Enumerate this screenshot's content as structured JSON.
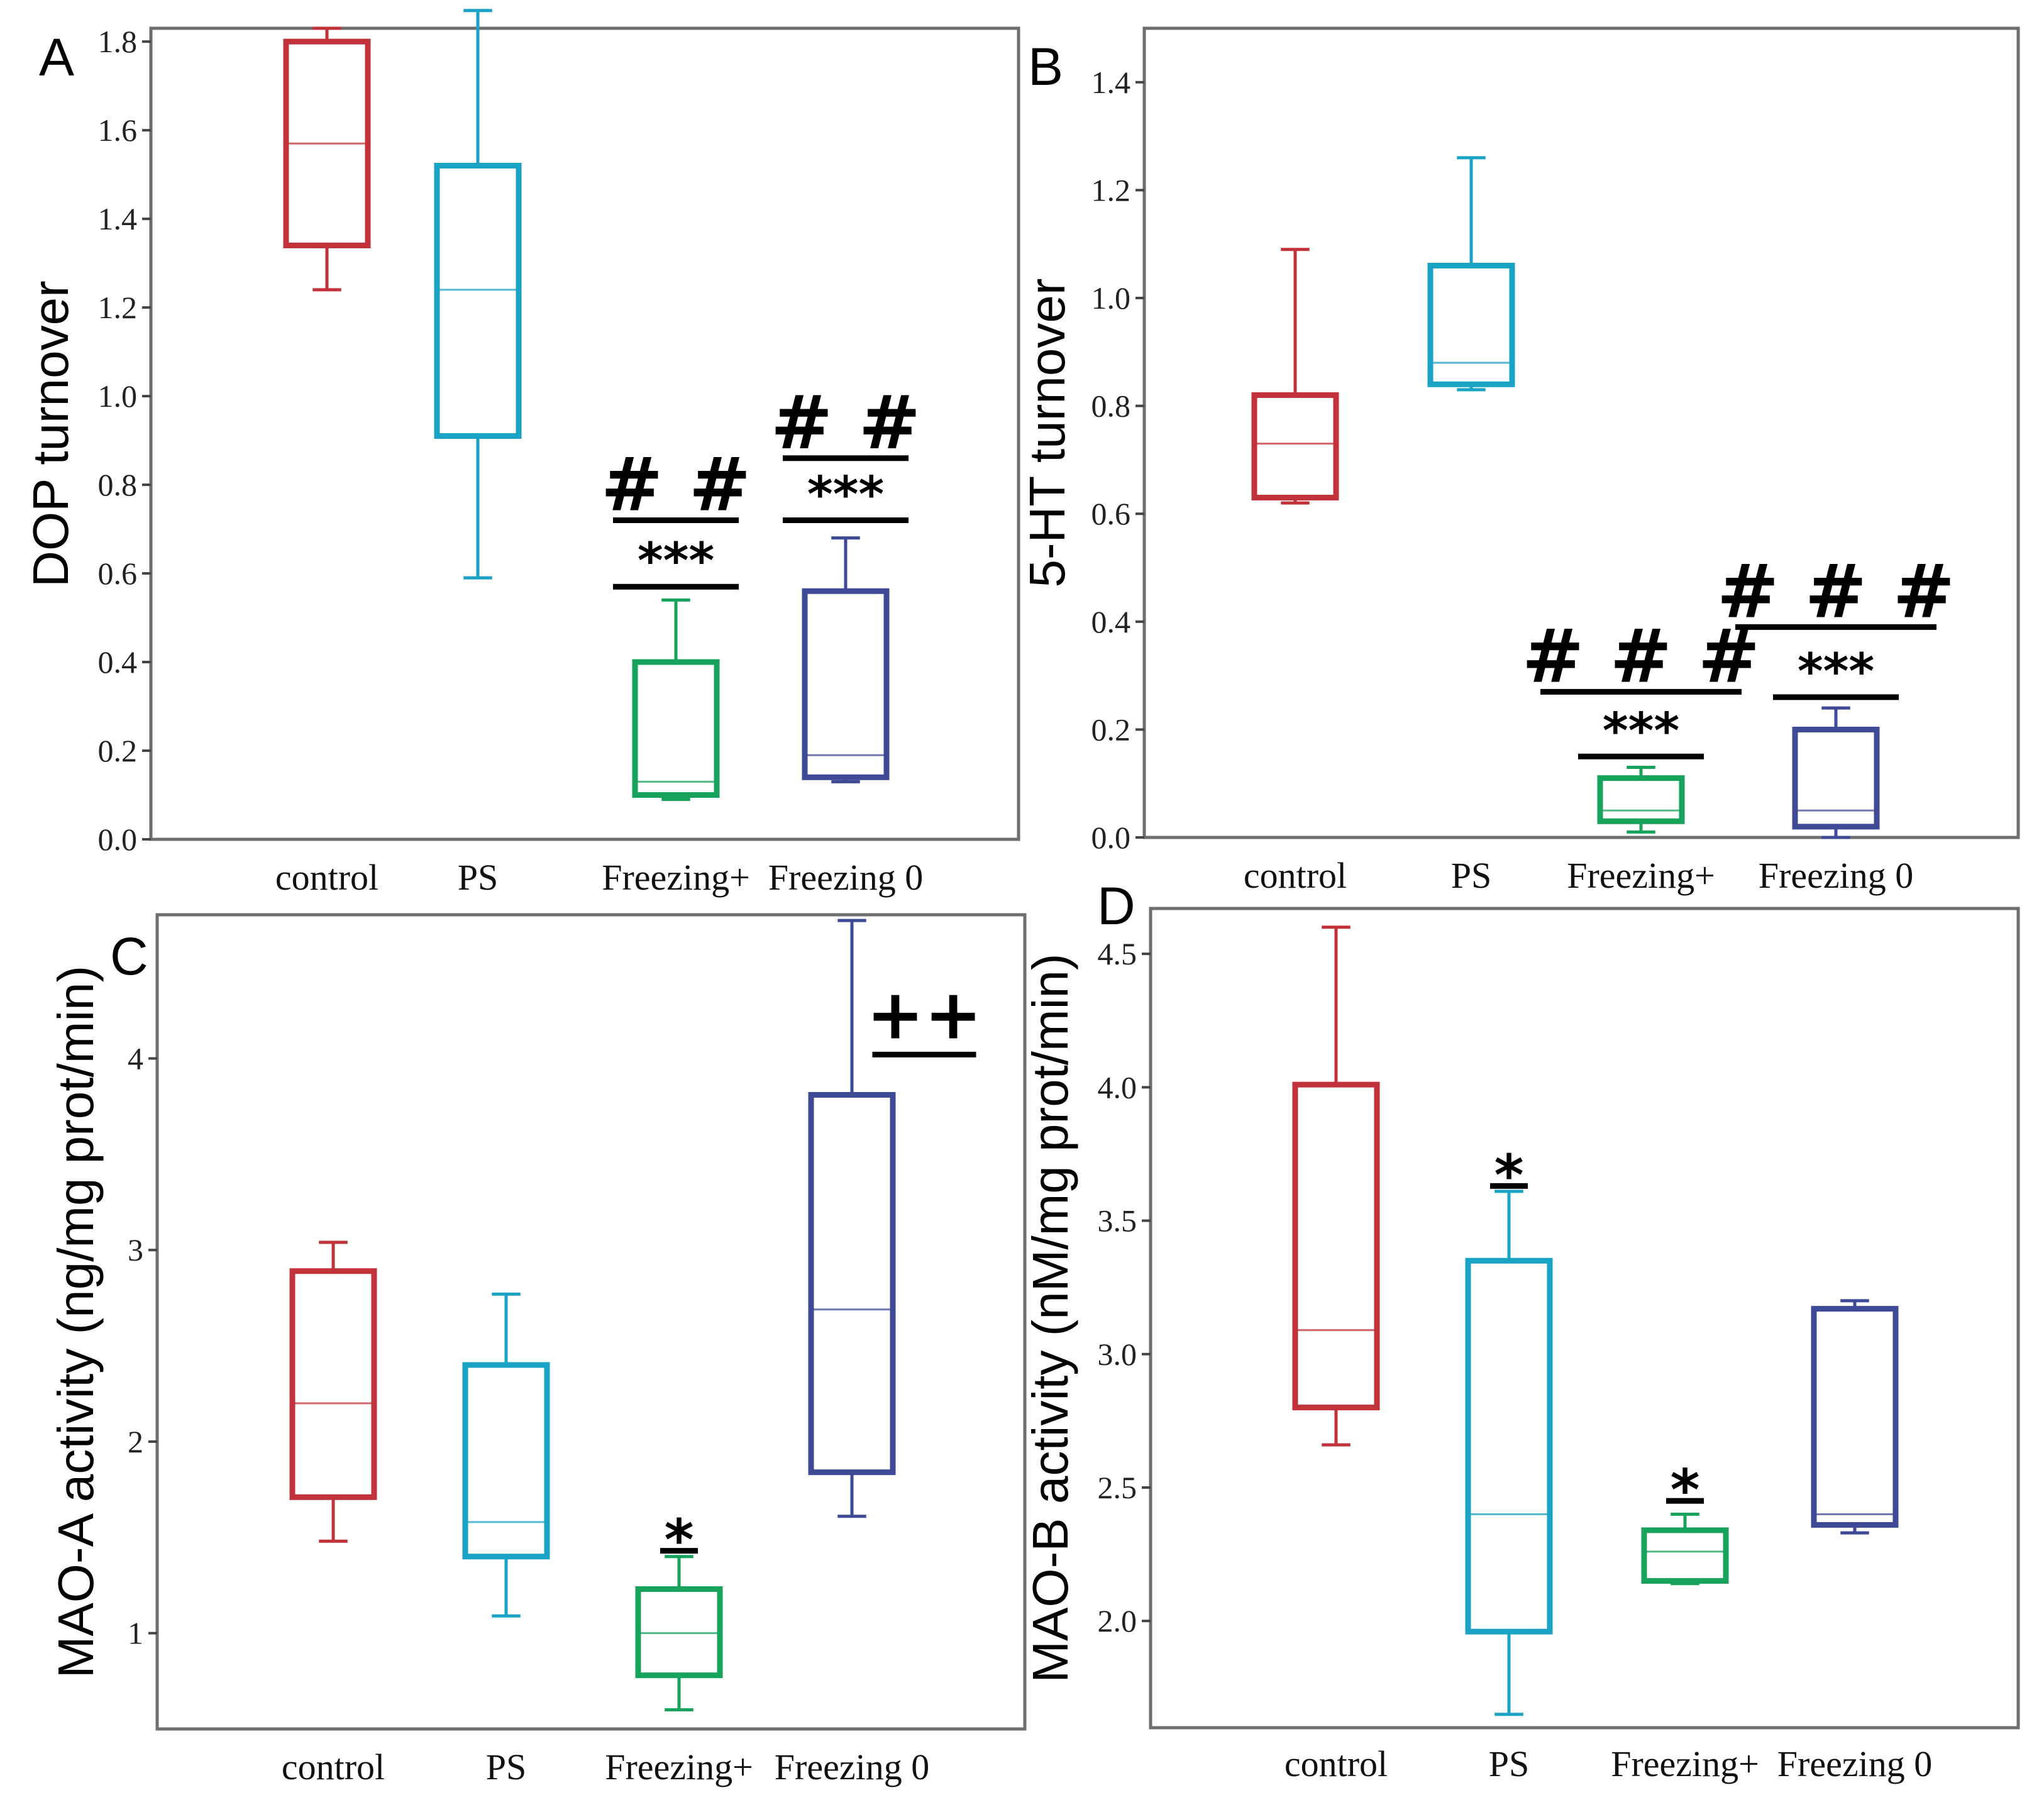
{
  "colors": {
    "control": "#c1323a",
    "PS": "#1aa3c4",
    "Freezing+": "#17a35b",
    "Freezing 0": "#3e4a96"
  },
  "chart_data": [
    {
      "panel": "A",
      "type": "box",
      "ylabel": "DOP turnover",
      "ylim": [
        0.0,
        1.83
      ],
      "yticks": [
        0.0,
        0.2,
        0.4,
        0.6,
        0.8,
        1.0,
        1.2,
        1.4,
        1.6,
        1.8
      ],
      "ytick_labels": [
        "0.0",
        "0.2",
        "0.4",
        "0.6",
        "0.8",
        "1.0",
        "1.2",
        "1.4",
        "1.6",
        "1.8"
      ],
      "categories": [
        "control",
        "PS",
        "Freezing+",
        "Freezing 0"
      ],
      "boxes": [
        {
          "group": "control",
          "min": 1.24,
          "q1": 1.34,
          "median": 1.57,
          "q3": 1.8,
          "max": 1.83
        },
        {
          "group": "PS",
          "min": 0.59,
          "q1": 0.91,
          "median": 1.24,
          "q3": 1.52,
          "max": 1.87
        },
        {
          "group": "Freezing+",
          "min": 0.09,
          "q1": 0.1,
          "median": 0.13,
          "q3": 0.4,
          "max": 0.54
        },
        {
          "group": "Freezing 0",
          "min": 0.13,
          "q1": 0.14,
          "median": 0.19,
          "q3": 0.56,
          "max": 0.68
        }
      ],
      "annotations": [
        {
          "group": "Freezing+",
          "text": "***",
          "level": 0.57,
          "kind": "star"
        },
        {
          "group": "Freezing+",
          "text": "# #",
          "level": 0.72,
          "kind": "hash"
        },
        {
          "group": "Freezing 0",
          "text": "***",
          "level": 0.72,
          "kind": "star"
        },
        {
          "group": "Freezing 0",
          "text": "# #",
          "level": 0.86,
          "kind": "hash"
        }
      ]
    },
    {
      "panel": "B",
      "type": "box",
      "ylabel": "5-HT turnover",
      "ylim": [
        0.0,
        1.5
      ],
      "yticks": [
        0.0,
        0.2,
        0.4,
        0.6,
        0.8,
        1.0,
        1.2,
        1.4
      ],
      "ytick_labels": [
        "0.0",
        "0.2",
        "0.4",
        "0.6",
        "0.8",
        "1.0",
        "1.2",
        "1.4"
      ],
      "categories": [
        "control",
        "PS",
        "Freezing+",
        "Freezing 0"
      ],
      "boxes": [
        {
          "group": "control",
          "min": 0.62,
          "q1": 0.63,
          "median": 0.73,
          "q3": 0.82,
          "max": 1.09
        },
        {
          "group": "PS",
          "min": 0.83,
          "q1": 0.84,
          "median": 0.88,
          "q3": 1.06,
          "max": 1.26
        },
        {
          "group": "Freezing+",
          "min": 0.01,
          "q1": 0.03,
          "median": 0.05,
          "q3": 0.11,
          "max": 0.13
        },
        {
          "group": "Freezing 0",
          "min": 0.0,
          "q1": 0.02,
          "median": 0.05,
          "q3": 0.2,
          "max": 0.24
        }
      ],
      "annotations": [
        {
          "group": "Freezing+",
          "text": "***",
          "level": 0.15,
          "kind": "star"
        },
        {
          "group": "Freezing+",
          "text": "# # #",
          "level": 0.27,
          "kind": "hash"
        },
        {
          "group": "Freezing 0",
          "text": "***",
          "level": 0.26,
          "kind": "star"
        },
        {
          "group": "Freezing 0",
          "text": "# # #",
          "level": 0.39,
          "kind": "hash"
        }
      ]
    },
    {
      "panel": "C",
      "type": "box",
      "ylabel": "MAO-A activity (ng/mg prot/min)",
      "ylim": [
        0.5,
        4.75
      ],
      "yticks": [
        1,
        2,
        3,
        4
      ],
      "ytick_labels": [
        "1",
        "2",
        "3",
        "4"
      ],
      "categories": [
        "control",
        "PS",
        "Freezing+",
        "Freezing 0"
      ],
      "boxes": [
        {
          "group": "control",
          "min": 1.48,
          "q1": 1.71,
          "median": 2.2,
          "q3": 2.89,
          "max": 3.04
        },
        {
          "group": "PS",
          "min": 1.09,
          "q1": 1.4,
          "median": 1.58,
          "q3": 2.4,
          "max": 2.77
        },
        {
          "group": "Freezing+",
          "min": 0.6,
          "q1": 0.78,
          "median": 1.0,
          "q3": 1.23,
          "max": 1.4
        },
        {
          "group": "Freezing 0",
          "min": 1.61,
          "q1": 1.84,
          "median": 2.69,
          "q3": 3.81,
          "max": 4.72
        }
      ],
      "annotations": [
        {
          "group": "Freezing+",
          "text": "*",
          "level": 1.43,
          "kind": "star"
        },
        {
          "group": "Freezing 0",
          "text": "++",
          "level": 4.02,
          "kind": "plus"
        }
      ]
    },
    {
      "panel": "D",
      "type": "box",
      "ylabel": "MAO-B activity (nM/mg prot/min)",
      "ylim": [
        1.6,
        4.67
      ],
      "yticks": [
        2.0,
        2.5,
        3.0,
        3.5,
        4.0,
        4.5
      ],
      "ytick_labels": [
        "2.0",
        "2.5",
        "3.0",
        "3.5",
        "4.0",
        "4.5"
      ],
      "categories": [
        "control",
        "PS",
        "Freezing+",
        "Freezing 0"
      ],
      "boxes": [
        {
          "group": "control",
          "min": 2.66,
          "q1": 2.8,
          "median": 3.09,
          "q3": 4.01,
          "max": 4.6
        },
        {
          "group": "PS",
          "min": 1.65,
          "q1": 1.96,
          "median": 2.4,
          "q3": 3.35,
          "max": 3.61
        },
        {
          "group": "Freezing+",
          "min": 2.14,
          "q1": 2.15,
          "median": 2.26,
          "q3": 2.34,
          "max": 2.4
        },
        {
          "group": "Freezing 0",
          "min": 2.33,
          "q1": 2.36,
          "median": 2.4,
          "q3": 3.17,
          "max": 3.2
        }
      ],
      "annotations": [
        {
          "group": "PS",
          "text": "*",
          "level": 3.63,
          "kind": "star"
        },
        {
          "group": "Freezing+",
          "text": "*",
          "level": 2.45,
          "kind": "star"
        }
      ]
    }
  ]
}
